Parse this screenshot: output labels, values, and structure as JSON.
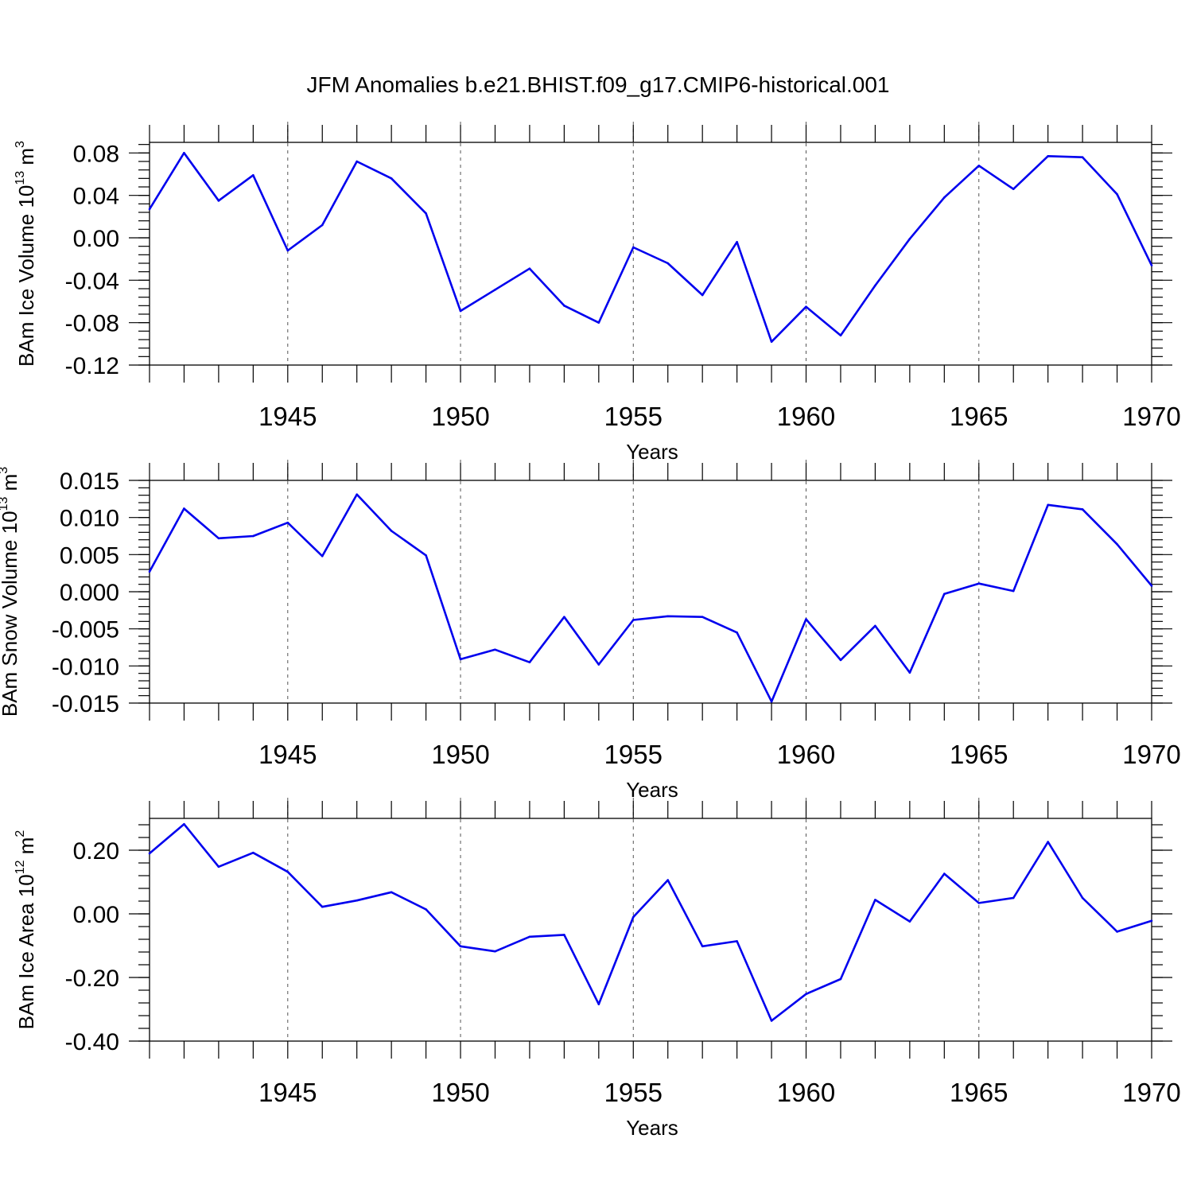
{
  "title": "JFM Anomalies b.e21.BHIST.f09_g17.CMIP6-historical.001",
  "colors": {
    "series": "#0000ee",
    "grid": "#555555",
    "axis": "#000000"
  },
  "chart_data": [
    {
      "type": "line",
      "ylabel": {
        "text": "BAm Ice Volume 10",
        "sup": "13",
        "unit": " m",
        "unit_sup": "3"
      },
      "xlabel": "Years",
      "xlim": [
        1941,
        1970
      ],
      "ylim": [
        -0.12,
        0.09
      ],
      "xticks": [
        1945,
        1950,
        1955,
        1960,
        1965,
        1970
      ],
      "yticks": [
        "0.08",
        "0.04",
        "0.00",
        "-0.04",
        "-0.08",
        "-0.12"
      ],
      "grid": "vertical-dashed-at-major-x",
      "x": [
        1941,
        1942,
        1943,
        1944,
        1945,
        1946,
        1947,
        1948,
        1949,
        1950,
        1951,
        1952,
        1953,
        1954,
        1955,
        1956,
        1957,
        1958,
        1959,
        1960,
        1961,
        1962,
        1963,
        1964,
        1965,
        1966,
        1967,
        1968,
        1969,
        1970
      ],
      "values": [
        0.027,
        0.08,
        0.035,
        0.059,
        -0.012,
        0.012,
        0.072,
        0.056,
        0.023,
        -0.069,
        -0.049,
        -0.029,
        -0.064,
        -0.08,
        -0.009,
        -0.024,
        -0.054,
        -0.004,
        -0.098,
        -0.065,
        -0.092,
        -0.045,
        -0.001,
        0.038,
        0.068,
        0.046,
        0.077,
        0.076,
        0.041,
        -0.026
      ]
    },
    {
      "type": "line",
      "ylabel": {
        "text": "BAm Snow Volume 10",
        "sup": "13",
        "unit": " m",
        "unit_sup": "3"
      },
      "xlabel": "Years",
      "xlim": [
        1941,
        1970
      ],
      "ylim": [
        -0.015,
        0.015
      ],
      "xticks": [
        1945,
        1950,
        1955,
        1960,
        1965,
        1970
      ],
      "yticks": [
        "0.015",
        "0.010",
        "0.005",
        "0.000",
        "-0.005",
        "-0.010",
        "-0.015"
      ],
      "grid": "vertical-dashed-at-major-x",
      "x": [
        1941,
        1942,
        1943,
        1944,
        1945,
        1946,
        1947,
        1948,
        1949,
        1950,
        1951,
        1952,
        1953,
        1954,
        1955,
        1956,
        1957,
        1958,
        1959,
        1960,
        1961,
        1962,
        1963,
        1964,
        1965,
        1966,
        1967,
        1968,
        1969,
        1970
      ],
      "values": [
        0.0027,
        0.0112,
        0.0072,
        0.0075,
        0.0093,
        0.0048,
        0.0131,
        0.0082,
        0.0049,
        -0.0091,
        -0.0078,
        -0.0095,
        -0.0034,
        -0.0098,
        -0.0038,
        -0.0033,
        -0.0034,
        -0.0055,
        -0.0148,
        -0.0037,
        -0.0092,
        -0.0046,
        -0.0109,
        -0.0003,
        0.0011,
        0.0001,
        0.0117,
        0.0111,
        0.0064,
        0.0008
      ]
    },
    {
      "type": "line",
      "ylabel": {
        "text": "BAm Ice Area 10",
        "sup": "12",
        "unit": " m",
        "unit_sup": "2"
      },
      "xlabel": "Years",
      "xlim": [
        1941,
        1970
      ],
      "ylim": [
        -0.4,
        0.3
      ],
      "xticks": [
        1945,
        1950,
        1955,
        1960,
        1965,
        1970
      ],
      "yticks": [
        "0.20",
        "0.00",
        "-0.20",
        "-0.40"
      ],
      "grid": "vertical-dashed-at-major-x",
      "x": [
        1941,
        1942,
        1943,
        1944,
        1945,
        1946,
        1947,
        1948,
        1949,
        1950,
        1951,
        1952,
        1953,
        1954,
        1955,
        1956,
        1957,
        1958,
        1959,
        1960,
        1961,
        1962,
        1963,
        1964,
        1965,
        1966,
        1967,
        1968,
        1969,
        1970
      ],
      "values": [
        0.19,
        0.282,
        0.148,
        0.192,
        0.132,
        0.022,
        0.042,
        0.068,
        0.014,
        -0.102,
        -0.118,
        -0.072,
        -0.066,
        -0.284,
        -0.01,
        0.106,
        -0.102,
        -0.086,
        -0.336,
        -0.252,
        -0.205,
        0.044,
        -0.024,
        0.126,
        0.034,
        0.05,
        0.226,
        0.05,
        -0.056,
        -0.022
      ]
    }
  ]
}
